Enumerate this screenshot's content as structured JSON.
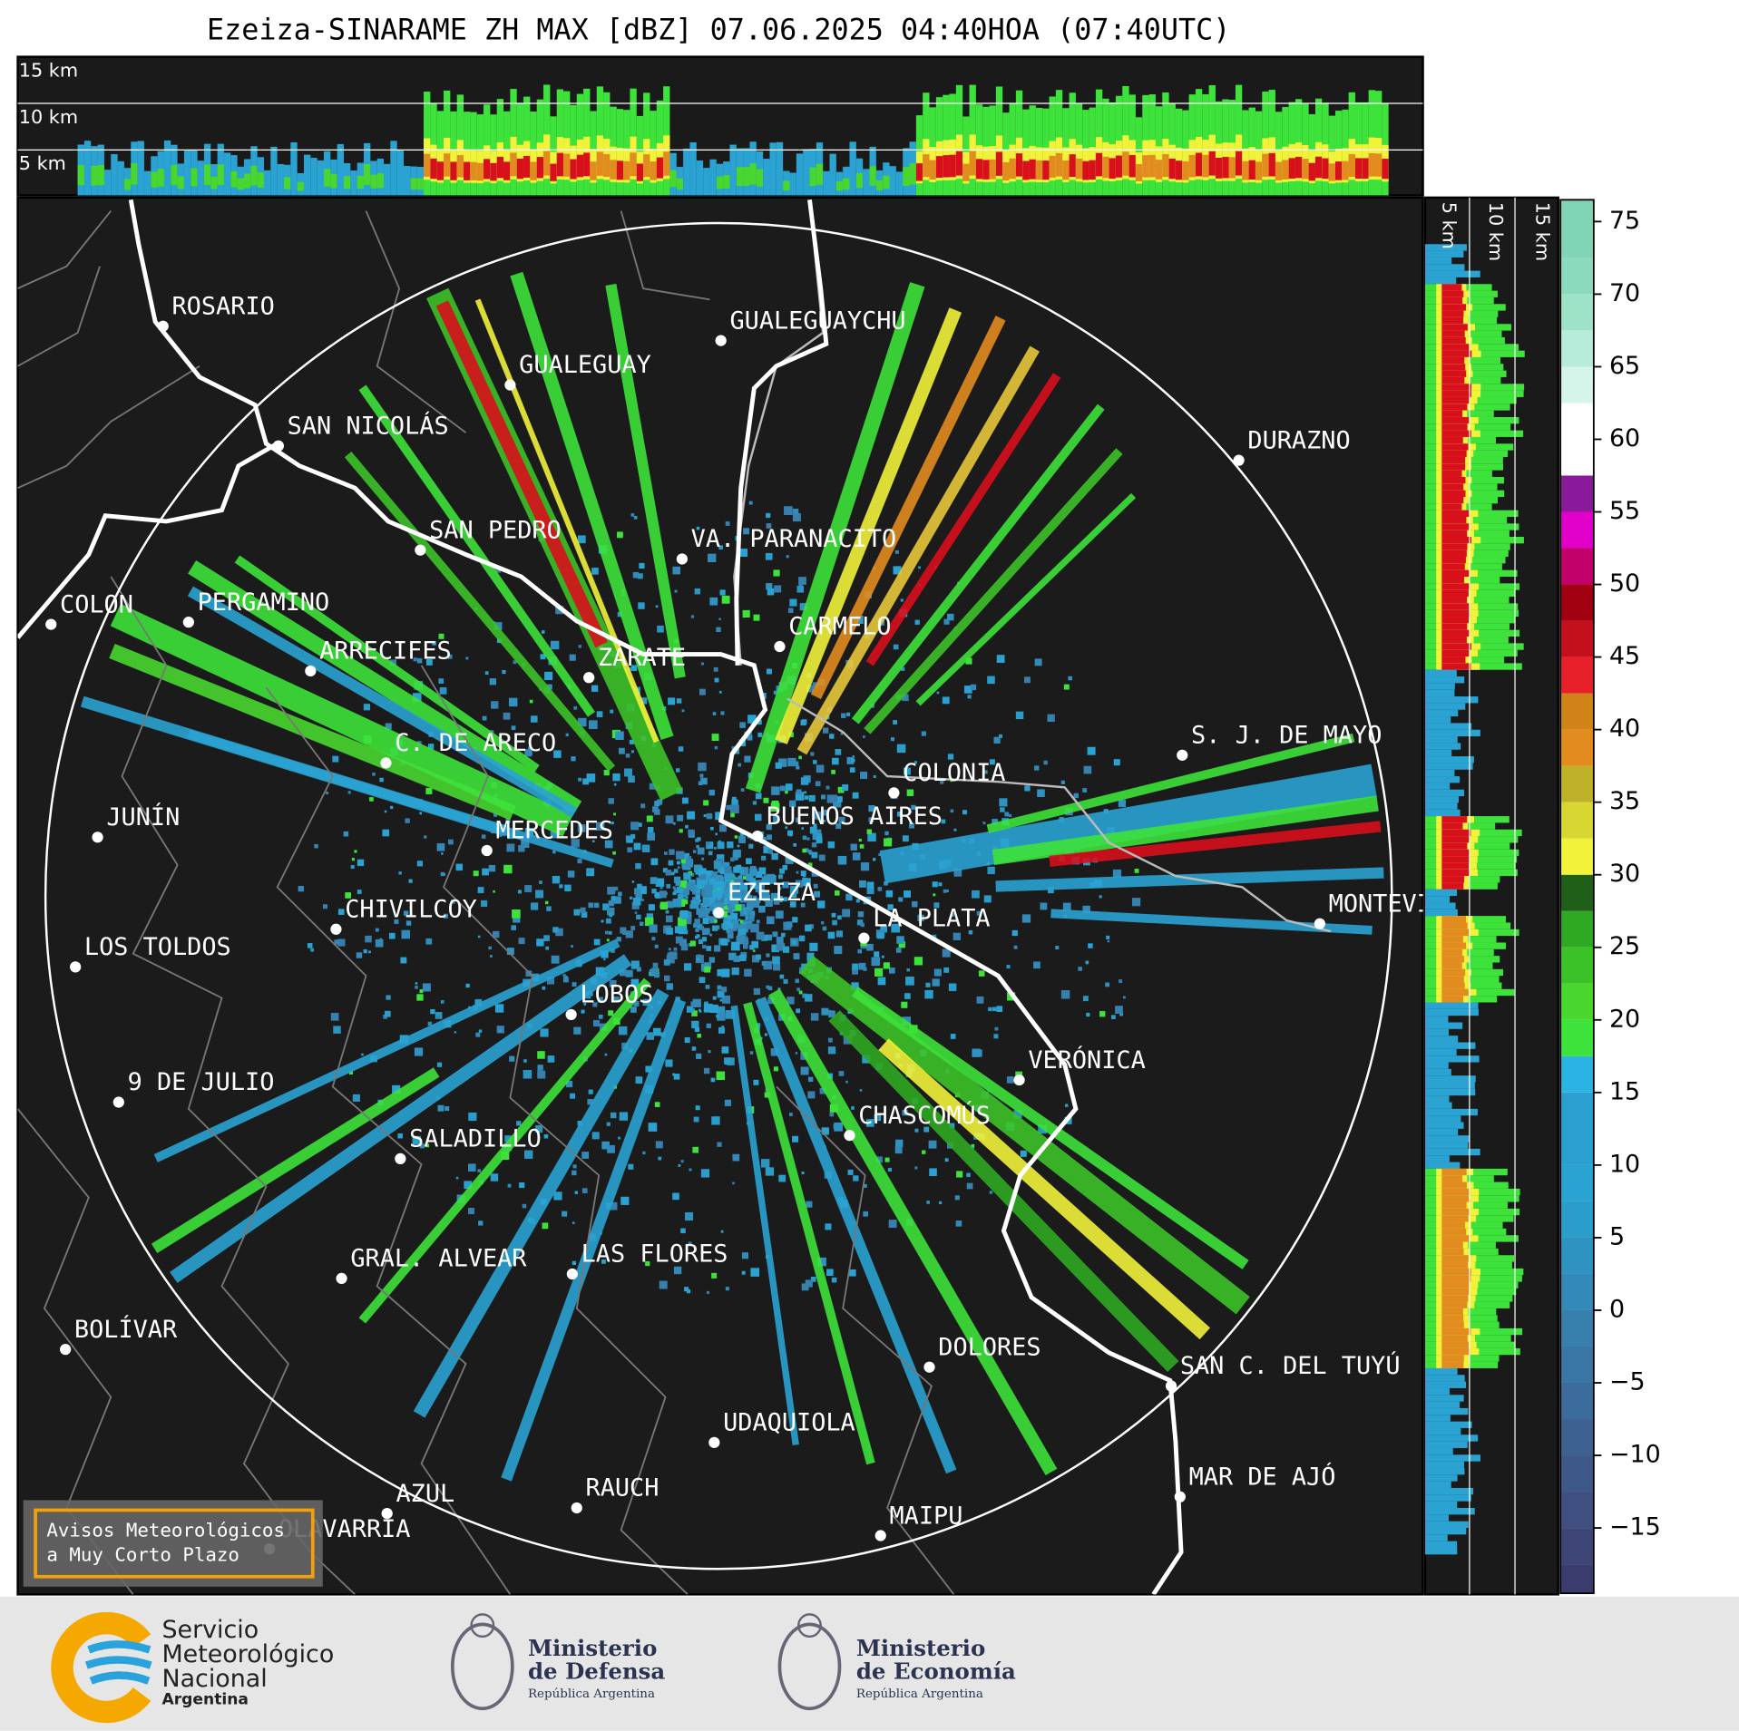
{
  "title": "Ezeiza-SINARAME ZH MAX [dBZ] 07.06.2025 04:40HOA (07:40UTC)",
  "top_profile_labels": [
    "15 km",
    "10 km",
    "5 km"
  ],
  "side_profile_labels": [
    "5 km",
    "10 km",
    "15 km"
  ],
  "places": [
    "ROSARIO",
    "GUALEGUAYCHU",
    "GUALEGUAY",
    "SAN NICOLÁS",
    "DURAZNO",
    "SAN PEDRO",
    "VA. PARANACITO",
    "COLON",
    "PERGAMINO",
    "CARMELO",
    "ARRECIFES",
    "ZÁRATE",
    "S. J. DE MAYO",
    "C. DE ARECO",
    "COLONIA",
    "BUENOS AIRES",
    "JUNÍN",
    "MERCEDES",
    "EZEIZA",
    "MONTEVIDEO",
    "CHIVILCOY",
    "LA PLATA",
    "LOS TOLDOS",
    "LOBOS",
    "VERÓNICA",
    "9 DE JULIO",
    "CHASCOMÚS",
    "SALADILLO",
    "GRAL. ALVEAR",
    "LAS FLORES",
    "BOLÍVAR",
    "DOLORES",
    "SAN C. DEL TUYÚ",
    "UDAQUIOLA",
    "MAR DE AJÓ",
    "RAUCH",
    "AZUL",
    "OLAVARRÍA",
    "MAIPU"
  ],
  "warning_box": [
    "Avisos Meteorológicos",
    "a Muy Corto Plazo"
  ],
  "colorbar": {
    "lim": [
      -19.5,
      76.5
    ],
    "ticks": [
      {
        "value": -15,
        "label": "−15"
      },
      {
        "value": -10,
        "label": "−10"
      },
      {
        "value": -5,
        "label": "−5"
      },
      0,
      5,
      10,
      15,
      20,
      25,
      30,
      35,
      40,
      45,
      50,
      55,
      60,
      65,
      70,
      75
    ],
    "bands": [
      {
        "from": -19.5,
        "color": "#3b3c6e"
      },
      {
        "from": -17.5,
        "color": "#3d4677"
      },
      {
        "from": -15,
        "color": "#3e4f80"
      },
      {
        "from": -12.5,
        "color": "#3e5889"
      },
      {
        "from": -10,
        "color": "#3d6292"
      },
      {
        "from": -7.5,
        "color": "#3b6c9b"
      },
      {
        "from": -5,
        "color": "#3976a5"
      },
      {
        "from": -2.5,
        "color": "#3780ae"
      },
      {
        "from": 0,
        "color": "#3389b8"
      },
      {
        "from": 2.5,
        "color": "#2f93c1"
      },
      {
        "from": 5,
        "color": "#2b9dca"
      },
      {
        "from": 7.5,
        "color": "#2aa3d3"
      },
      {
        "from": 10,
        "color": "#2a9fd0"
      },
      {
        "from": 15,
        "color": "#2bb3e3"
      },
      {
        "from": 17.5,
        "color": "#3de23a"
      },
      {
        "from": 20,
        "color": "#48d62f"
      },
      {
        "from": 22.5,
        "color": "#3cc229"
      },
      {
        "from": 25,
        "color": "#2fa822"
      },
      {
        "from": 27.5,
        "color": "#1f5f18"
      },
      {
        "from": 30,
        "color": "#f2f23a"
      },
      {
        "from": 32.5,
        "color": "#d8d630"
      },
      {
        "from": 35,
        "color": "#bdb12a"
      },
      {
        "from": 37.5,
        "color": "#e28c1f"
      },
      {
        "from": 40,
        "color": "#d08418"
      },
      {
        "from": 42.5,
        "color": "#e8202a"
      },
      {
        "from": 45,
        "color": "#c4101c"
      },
      {
        "from": 47.5,
        "color": "#a00010"
      },
      {
        "from": 50,
        "color": "#c2006a"
      },
      {
        "from": 52.5,
        "color": "#e000c8"
      },
      {
        "from": 55,
        "color": "#8a1a9a"
      },
      {
        "from": 57.5,
        "color": "#ffffff"
      },
      {
        "from": 62.5,
        "color": "#d6f5ea"
      },
      {
        "from": 65,
        "color": "#b6ecd9"
      },
      {
        "from": 67.5,
        "color": "#9ee3c8"
      },
      {
        "from": 70,
        "color": "#8bdabd"
      },
      {
        "from": 72.5,
        "color": "#7fd5b5"
      }
    ]
  },
  "footer": {
    "smn": [
      "Servicio",
      "Meteorológico",
      "Nacional",
      "Argentina"
    ],
    "defensa": [
      "Ministerio",
      "de Defensa",
      "República Argentina"
    ],
    "economia": [
      "Ministerio",
      "de Economía",
      "República Argentina"
    ]
  }
}
